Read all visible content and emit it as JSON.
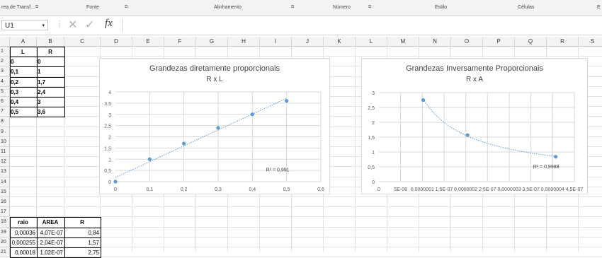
{
  "ribbon": {
    "groups": [
      "rea de Transf...",
      "Fonte",
      "Alinhamento",
      "Número",
      "Estilo",
      "Células",
      "E"
    ]
  },
  "formula_bar": {
    "name_box": "U1",
    "fx": "fx",
    "cancel": "✕",
    "enter": "✓",
    "value": ""
  },
  "columns": [
    "A",
    "B",
    "C",
    "D",
    "E",
    "F",
    "G",
    "H",
    "I",
    "J",
    "K",
    "L",
    "M",
    "N",
    "O",
    "P",
    "Q",
    "R",
    "S"
  ],
  "rows": [
    "1",
    "2",
    "3",
    "4",
    "5",
    "6",
    "7",
    "8",
    "9",
    "10",
    "11",
    "12",
    "13",
    "14",
    "15",
    "16",
    "17",
    "18",
    "19",
    "20",
    "21"
  ],
  "table1": {
    "headers": [
      "L",
      "R"
    ],
    "rows": [
      [
        "0",
        "0"
      ],
      [
        "0,1",
        "1"
      ],
      [
        "0,2",
        "1,7"
      ],
      [
        "0,3",
        "2,4"
      ],
      [
        "0,4",
        "3"
      ],
      [
        "0,5",
        "3,6"
      ]
    ]
  },
  "table2": {
    "headers": [
      "raio",
      "AREA",
      "R"
    ],
    "rows": [
      [
        "0,00036",
        "4,07E-07",
        "0,84"
      ],
      [
        "0,000255",
        "2,04E-07",
        "1,57"
      ],
      [
        "0,00018",
        "1,02E-07",
        "2,75"
      ]
    ]
  },
  "chart_data": [
    {
      "type": "scatter",
      "title": "Grandezas diretamente proporcionais",
      "subtitle": "R x L",
      "x": [
        0,
        0.1,
        0.2,
        0.3,
        0.4,
        0.5
      ],
      "y": [
        0,
        1,
        1.7,
        2.4,
        3,
        3.6
      ],
      "xlim": [
        0,
        0.6
      ],
      "ylim": [
        0,
        4
      ],
      "xticks": [
        "0",
        "0,1",
        "0,2",
        "0,3",
        "0,4",
        "0,5",
        "0,6"
      ],
      "yticks": [
        "0",
        "0,5",
        "1",
        "1,5",
        "2",
        "2,5",
        "3",
        "3,5",
        "4"
      ],
      "trendline": "linear",
      "r2_label": "R² = 0,991",
      "grid": true,
      "color": "#5b9bd5"
    },
    {
      "type": "scatter",
      "title": "Grandezas Inversamente Proporcionais",
      "subtitle": "R x A",
      "x": [
        1.02e-07,
        2.04e-07,
        4.07e-07
      ],
      "y": [
        2.75,
        1.57,
        0.84
      ],
      "xlim": [
        0,
        4.5e-07
      ],
      "ylim": [
        0,
        3
      ],
      "xticks": [
        "0",
        "5E-08",
        "0,0000001",
        "1,5E-07",
        "0,0000002",
        "2,5E-07",
        "0,0000003",
        "3,5E-07",
        "0,0000004",
        "4,5E-07"
      ],
      "yticks": [
        "0",
        "0,5",
        "1",
        "1,5",
        "2",
        "2,5",
        "3"
      ],
      "trendline": "power",
      "r2_label": "R² = 0,9988",
      "grid": true,
      "color": "#5b9bd5"
    }
  ]
}
